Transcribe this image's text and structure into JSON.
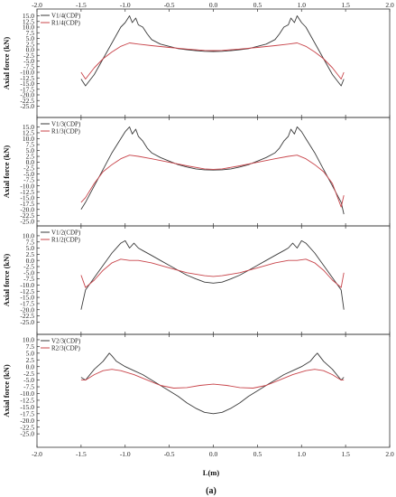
{
  "xlabel": "L(m)",
  "caption": "(a)",
  "colors": {
    "v_series": "#3a3a3a",
    "r_series": "#c8444a"
  },
  "chart_data": [
    {
      "type": "line",
      "ylabel": "Axial force (kN)",
      "xlim": [
        -2.0,
        2.0
      ],
      "ylim": [
        -30,
        18
      ],
      "xticks": [
        "-2.0",
        "-1.5",
        "-1.0",
        "-0.5",
        "0.0",
        "0.5",
        "1.0",
        "1.5",
        "2.0"
      ],
      "yticks": [
        "15.0",
        "12.5",
        "10.0",
        "7.5",
        "5.0",
        "2.5",
        "0.0",
        "-2.5",
        "-5.0",
        "-7.5",
        "-10.0",
        "-12.5",
        "-15.0",
        "-17.5",
        "-20.0",
        "-22.5",
        "-25.0"
      ],
      "legend_position": "top-left",
      "series": [
        {
          "name": "V1/4(CDP)",
          "x": [
            -1.5,
            -1.45,
            -1.35,
            -1.25,
            -1.15,
            -1.05,
            -1.0,
            -0.95,
            -0.92,
            -0.88,
            -0.85,
            -0.8,
            -0.75,
            -0.7,
            -0.6,
            -0.5,
            -0.4,
            -0.3,
            -0.2,
            -0.1,
            0.0,
            0.1,
            0.2,
            0.3,
            0.4,
            0.5,
            0.6,
            0.7,
            0.75,
            0.8,
            0.85,
            0.88,
            0.92,
            0.95,
            1.0,
            1.05,
            1.15,
            1.25,
            1.35,
            1.45,
            1.48
          ],
          "y": [
            -13,
            -16,
            -11,
            -4,
            3,
            10,
            12,
            15,
            12,
            14,
            11,
            10,
            7,
            4.5,
            2.5,
            1.5,
            0.5,
            0,
            -0.4,
            -0.7,
            -0.8,
            -0.7,
            -0.4,
            0,
            0.5,
            1.5,
            2.5,
            4.5,
            7,
            10,
            11,
            14,
            12,
            15,
            12,
            10,
            3,
            -4,
            -11,
            -16,
            -13
          ]
        },
        {
          "name": "R1/4(CDP)",
          "x": [
            -1.5,
            -1.45,
            -1.35,
            -1.25,
            -1.15,
            -1.05,
            -0.95,
            -0.85,
            -0.7,
            -0.5,
            -0.3,
            -0.1,
            0.0,
            0.1,
            0.3,
            0.5,
            0.7,
            0.85,
            0.95,
            1.05,
            1.15,
            1.25,
            1.35,
            1.45,
            1.48
          ],
          "y": [
            -10,
            -13,
            -8,
            -4,
            -1,
            1.5,
            3,
            2.5,
            1.8,
            1,
            0.3,
            -0.3,
            -0.4,
            -0.3,
            0.3,
            1,
            1.8,
            2.5,
            3,
            1.5,
            -1,
            -4,
            -8,
            -13,
            -10
          ]
        }
      ]
    },
    {
      "type": "line",
      "ylabel": "Axial force (kN)",
      "xlim": [
        -2.0,
        2.0
      ],
      "ylim": [
        -27,
        19
      ],
      "xticks": [
        "-2.0",
        "-1.5",
        "-1.0",
        "-0.5",
        "0.0",
        "0.5",
        "1.0",
        "1.5",
        "2.0"
      ],
      "yticks": [
        "15.0",
        "12.5",
        "10.0",
        "7.5",
        "5.0",
        "2.5",
        "0.0",
        "-2.5",
        "-5.0",
        "-7.5",
        "-10.0",
        "-12.5",
        "-15.0",
        "-17.5",
        "-20.0",
        "-22.5",
        "-25.0"
      ],
      "legend_position": "top-left",
      "series": [
        {
          "name": "V1/3(CDP)",
          "x": [
            -1.5,
            -1.45,
            -1.35,
            -1.25,
            -1.15,
            -1.05,
            -1.0,
            -0.95,
            -0.92,
            -0.88,
            -0.85,
            -0.8,
            -0.75,
            -0.7,
            -0.6,
            -0.5,
            -0.4,
            -0.3,
            -0.2,
            -0.1,
            0.0,
            0.1,
            0.2,
            0.3,
            0.4,
            0.5,
            0.6,
            0.7,
            0.75,
            0.8,
            0.85,
            0.88,
            0.92,
            0.95,
            1.0,
            1.05,
            1.15,
            1.25,
            1.35,
            1.45,
            1.48
          ],
          "y": [
            -20,
            -17,
            -10,
            -3,
            4,
            10,
            13,
            15,
            12,
            14,
            11,
            9,
            6,
            4,
            2,
            0.5,
            -1,
            -2,
            -2.8,
            -3.2,
            -3.3,
            -3.2,
            -2.8,
            -2,
            -1,
            0.5,
            2,
            4,
            6,
            9,
            11,
            14,
            12,
            15,
            13,
            10,
            4,
            -3,
            -10,
            -17,
            -22
          ]
        },
        {
          "name": "R1/3(CDP)",
          "x": [
            -1.5,
            -1.45,
            -1.35,
            -1.25,
            -1.15,
            -1.05,
            -0.95,
            -0.85,
            -0.7,
            -0.5,
            -0.3,
            -0.1,
            0.0,
            0.1,
            0.3,
            0.5,
            0.7,
            0.85,
            0.95,
            1.05,
            1.15,
            1.25,
            1.35,
            1.45,
            1.48
          ],
          "y": [
            -17,
            -15,
            -9,
            -4,
            -1,
            1.5,
            3,
            2.5,
            1.5,
            0,
            -1.5,
            -2.8,
            -3,
            -2.8,
            -1.5,
            0,
            1.5,
            2.5,
            3,
            1.5,
            -1,
            -4,
            -9,
            -19,
            -14
          ]
        }
      ]
    },
    {
      "type": "line",
      "ylabel": "Axial force (kN)",
      "xlim": [
        -2.0,
        2.0
      ],
      "ylim": [
        -30,
        14
      ],
      "xticks": [
        "-2.0",
        "-1.5",
        "-1.0",
        "-0.5",
        "0.0",
        "0.5",
        "1.0",
        "1.5",
        "2.0"
      ],
      "yticks": [
        "10.0",
        "7.5",
        "5.0",
        "2.5",
        "0.0",
        "-2.5",
        "-5.0",
        "-7.5",
        "-10.0",
        "-12.5",
        "-15.0",
        "-17.5",
        "-20.0",
        "-22.5",
        "-25.0"
      ],
      "legend_position": "top-left",
      "series": [
        {
          "name": "V1/2(CDP)",
          "x": [
            -1.5,
            -1.45,
            -1.35,
            -1.25,
            -1.15,
            -1.05,
            -1.0,
            -0.95,
            -0.9,
            -0.85,
            -0.8,
            -0.7,
            -0.6,
            -0.5,
            -0.4,
            -0.3,
            -0.2,
            -0.1,
            0.0,
            0.1,
            0.2,
            0.3,
            0.4,
            0.5,
            0.6,
            0.7,
            0.8,
            0.85,
            0.9,
            0.95,
            1.0,
            1.05,
            1.15,
            1.25,
            1.35,
            1.45,
            1.48
          ],
          "y": [
            -20,
            -12,
            -7,
            -2,
            3,
            7,
            8,
            5,
            7,
            5,
            4,
            2,
            0,
            -2,
            -4,
            -6,
            -7.5,
            -8.8,
            -9.2,
            -8.8,
            -7.5,
            -6,
            -4,
            -2,
            0,
            2,
            4,
            5,
            7,
            5,
            8,
            7,
            3,
            -2,
            -7,
            -12,
            -20
          ]
        },
        {
          "name": "R1/2(CDP)",
          "x": [
            -1.5,
            -1.45,
            -1.35,
            -1.25,
            -1.15,
            -1.05,
            -0.95,
            -0.85,
            -0.7,
            -0.5,
            -0.3,
            -0.1,
            0.0,
            0.1,
            0.3,
            0.5,
            0.7,
            0.85,
            0.95,
            1.05,
            1.15,
            1.25,
            1.35,
            1.45,
            1.48
          ],
          "y": [
            -6,
            -11,
            -8,
            -4,
            -1,
            0.5,
            0,
            0,
            -1,
            -3,
            -5,
            -6.2,
            -6.5,
            -6.2,
            -5,
            -3,
            -1,
            0,
            0,
            0.5,
            -1,
            -4,
            -8,
            -11,
            -5
          ]
        }
      ]
    },
    {
      "type": "line",
      "ylabel": "Axial force (kN)",
      "xlim": [
        -2.0,
        2.0
      ],
      "ylim": [
        -30,
        12
      ],
      "xticks": [
        "-2.0",
        "-1.5",
        "-1.0",
        "-0.5",
        "0.0",
        "0.5",
        "1.0",
        "1.5",
        "2.0"
      ],
      "yticks": [
        "10.0",
        "7.5",
        "5.0",
        "2.5",
        "0.0",
        "-2.5",
        "-5.0",
        "-7.5",
        "-10.0",
        "-12.5",
        "-15.0",
        "-17.5",
        "-20.0",
        "-22.5",
        "-25.0"
      ],
      "legend_position": "top-left",
      "series": [
        {
          "name": "V2/3(CDP)",
          "x": [
            -1.5,
            -1.45,
            -1.35,
            -1.25,
            -1.18,
            -1.15,
            -1.1,
            -1.0,
            -0.9,
            -0.8,
            -0.7,
            -0.6,
            -0.5,
            -0.4,
            -0.3,
            -0.2,
            -0.1,
            0.0,
            0.1,
            0.2,
            0.3,
            0.4,
            0.5,
            0.6,
            0.7,
            0.8,
            0.9,
            1.0,
            1.1,
            1.15,
            1.18,
            1.25,
            1.35,
            1.45,
            1.48
          ],
          "y": [
            -4,
            -5,
            -1,
            2,
            5,
            4,
            2,
            0,
            -1.5,
            -3,
            -5,
            -7,
            -9,
            -11,
            -13.5,
            -15.5,
            -17,
            -17.5,
            -17,
            -15.5,
            -13.5,
            -11,
            -9,
            -7,
            -5,
            -3,
            -1.5,
            0,
            2,
            4,
            5,
            2,
            -1,
            -5,
            -4
          ]
        },
        {
          "name": "R2/3(CDP)",
          "x": [
            -1.5,
            -1.45,
            -1.35,
            -1.25,
            -1.15,
            -1.05,
            -0.9,
            -0.75,
            -0.6,
            -0.45,
            -0.3,
            -0.15,
            0.0,
            0.15,
            0.3,
            0.45,
            0.6,
            0.75,
            0.9,
            1.05,
            1.15,
            1.25,
            1.35,
            1.45,
            1.48
          ],
          "y": [
            -5,
            -5,
            -3,
            -1.5,
            -1,
            -1.5,
            -3,
            -5,
            -7,
            -8,
            -7.8,
            -7,
            -6.5,
            -7,
            -7.8,
            -8,
            -7,
            -5,
            -3,
            -1.5,
            -1,
            -1.5,
            -3,
            -5,
            -5
          ]
        }
      ]
    }
  ]
}
